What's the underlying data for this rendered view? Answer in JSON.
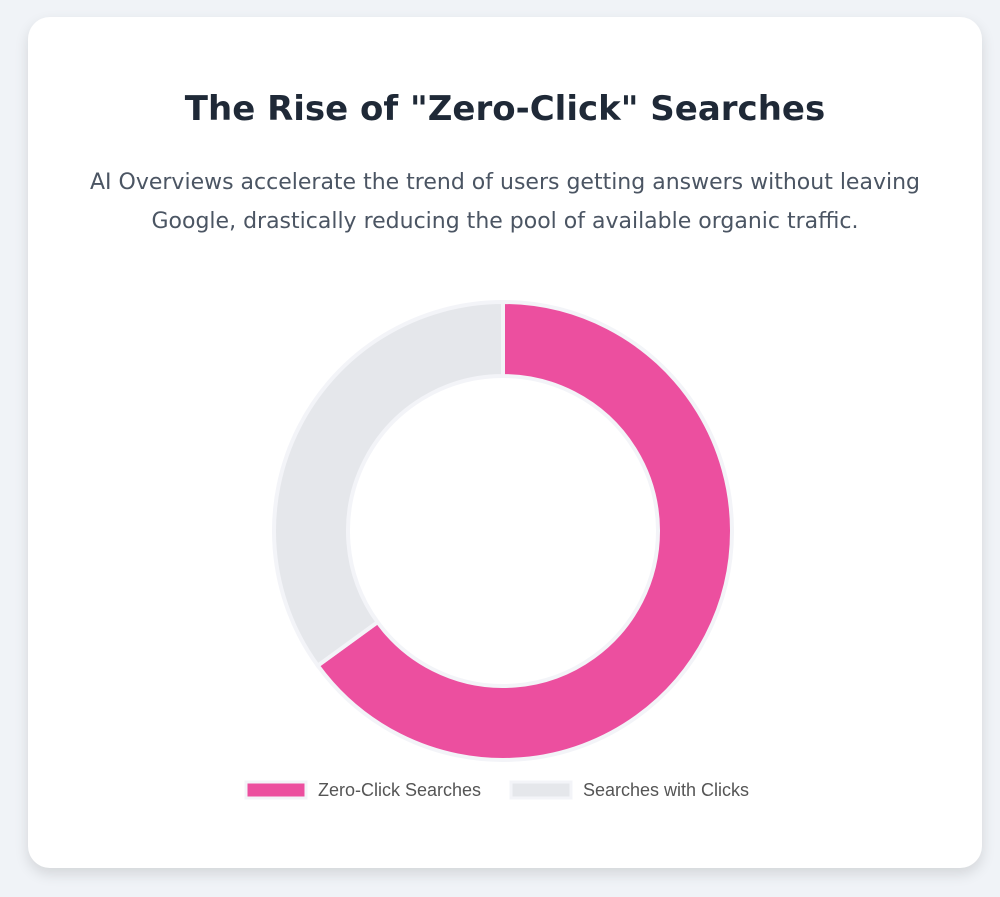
{
  "chart_data": {
    "type": "doughnut",
    "title": "The Rise of \"Zero-Click\" Searches",
    "subtitle": "AI Overviews accelerate the trend of users getting answers without leaving Google, drastically reducing the pool of available organic traffic.",
    "categories": [
      "Zero-Click Searches",
      "Searches with Clicks"
    ],
    "values": [
      65,
      35
    ],
    "colors": [
      "#ec4f9f",
      "#e5e7eb"
    ],
    "legend": "bottom"
  }
}
